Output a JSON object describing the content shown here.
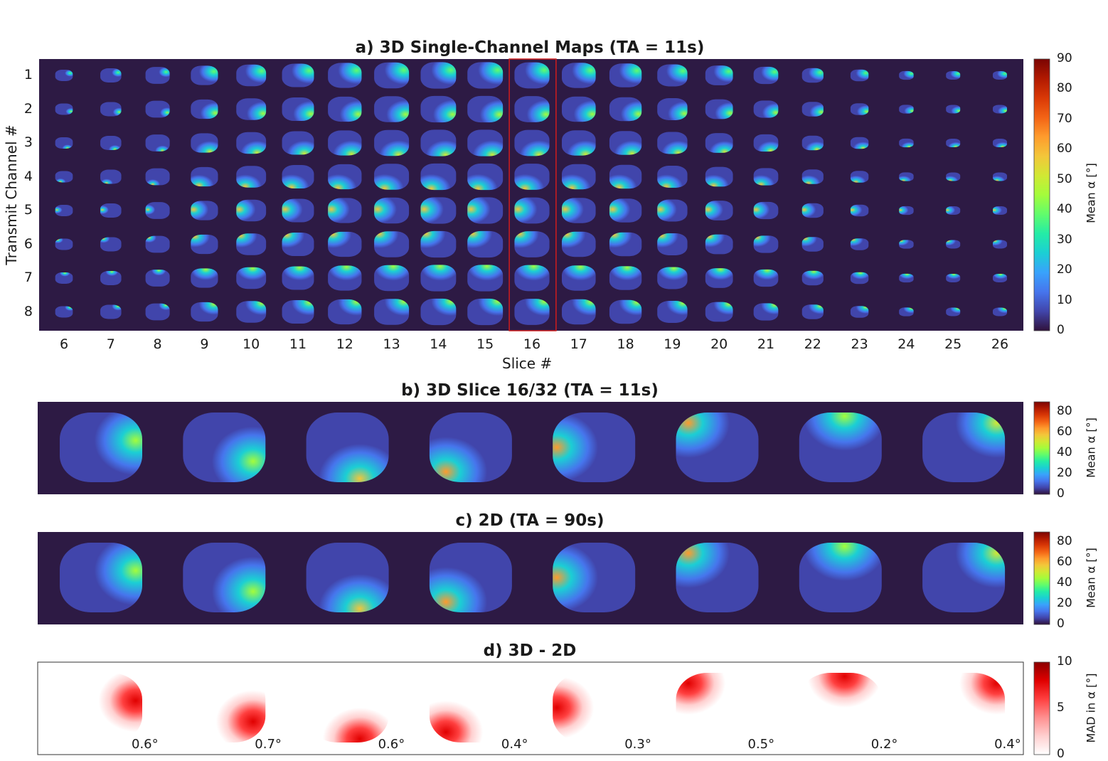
{
  "panel_a": {
    "title": "a) 3D Single-Channel Maps (TA = 11s)",
    "ylabel": "Transmit Channel #",
    "xlabel": "Slice #",
    "rows": [
      "1",
      "2",
      "3",
      "4",
      "5",
      "6",
      "7",
      "8"
    ],
    "cols": [
      "6",
      "7",
      "8",
      "9",
      "10",
      "11",
      "12",
      "13",
      "14",
      "15",
      "16",
      "17",
      "18",
      "19",
      "20",
      "21",
      "22",
      "23",
      "24",
      "25",
      "26"
    ],
    "highlight_col": "16",
    "colorbar": {
      "label": "Mean α [°]",
      "ticks": [
        "90",
        "80",
        "70",
        "60",
        "50",
        "40",
        "30",
        "20",
        "10",
        "0"
      ]
    }
  },
  "panel_b": {
    "title": "b) 3D Slice 16/32 (TA = 11s)",
    "colorbar": {
      "label": "Mean α [°]",
      "ticks": [
        "80",
        "60",
        "40",
        "20",
        "0"
      ]
    }
  },
  "panel_c": {
    "title": "c) 2D (TA = 90s)",
    "colorbar": {
      "label": "Mean α [°]",
      "ticks": [
        "80",
        "60",
        "40",
        "20",
        "0"
      ]
    }
  },
  "panel_d": {
    "title": "d) 3D - 2D",
    "values": [
      "0.6°",
      "0.7°",
      "0.6°",
      "0.4°",
      "0.3°",
      "0.5°",
      "0.2°",
      "0.4°"
    ],
    "colorbar": {
      "label": "MAD in α [°]",
      "ticks": [
        "10",
        "5",
        "0"
      ]
    }
  },
  "colors": {
    "background": "#2d1a44",
    "turbo": [
      "#30123b",
      "#4145ab",
      "#4675ed",
      "#39a2fc",
      "#1bcfd4",
      "#24eca6",
      "#61fc6c",
      "#a4fc3b",
      "#d1e834",
      "#f3c63a",
      "#fe9b2d",
      "#f36315",
      "#d93806",
      "#b11901",
      "#7a0402"
    ],
    "reds": [
      "#ffffff",
      "#ffd0d0",
      "#ff9090",
      "#ff4040",
      "#e00000",
      "#8b0000"
    ],
    "highlight": "#d11c1c"
  }
}
